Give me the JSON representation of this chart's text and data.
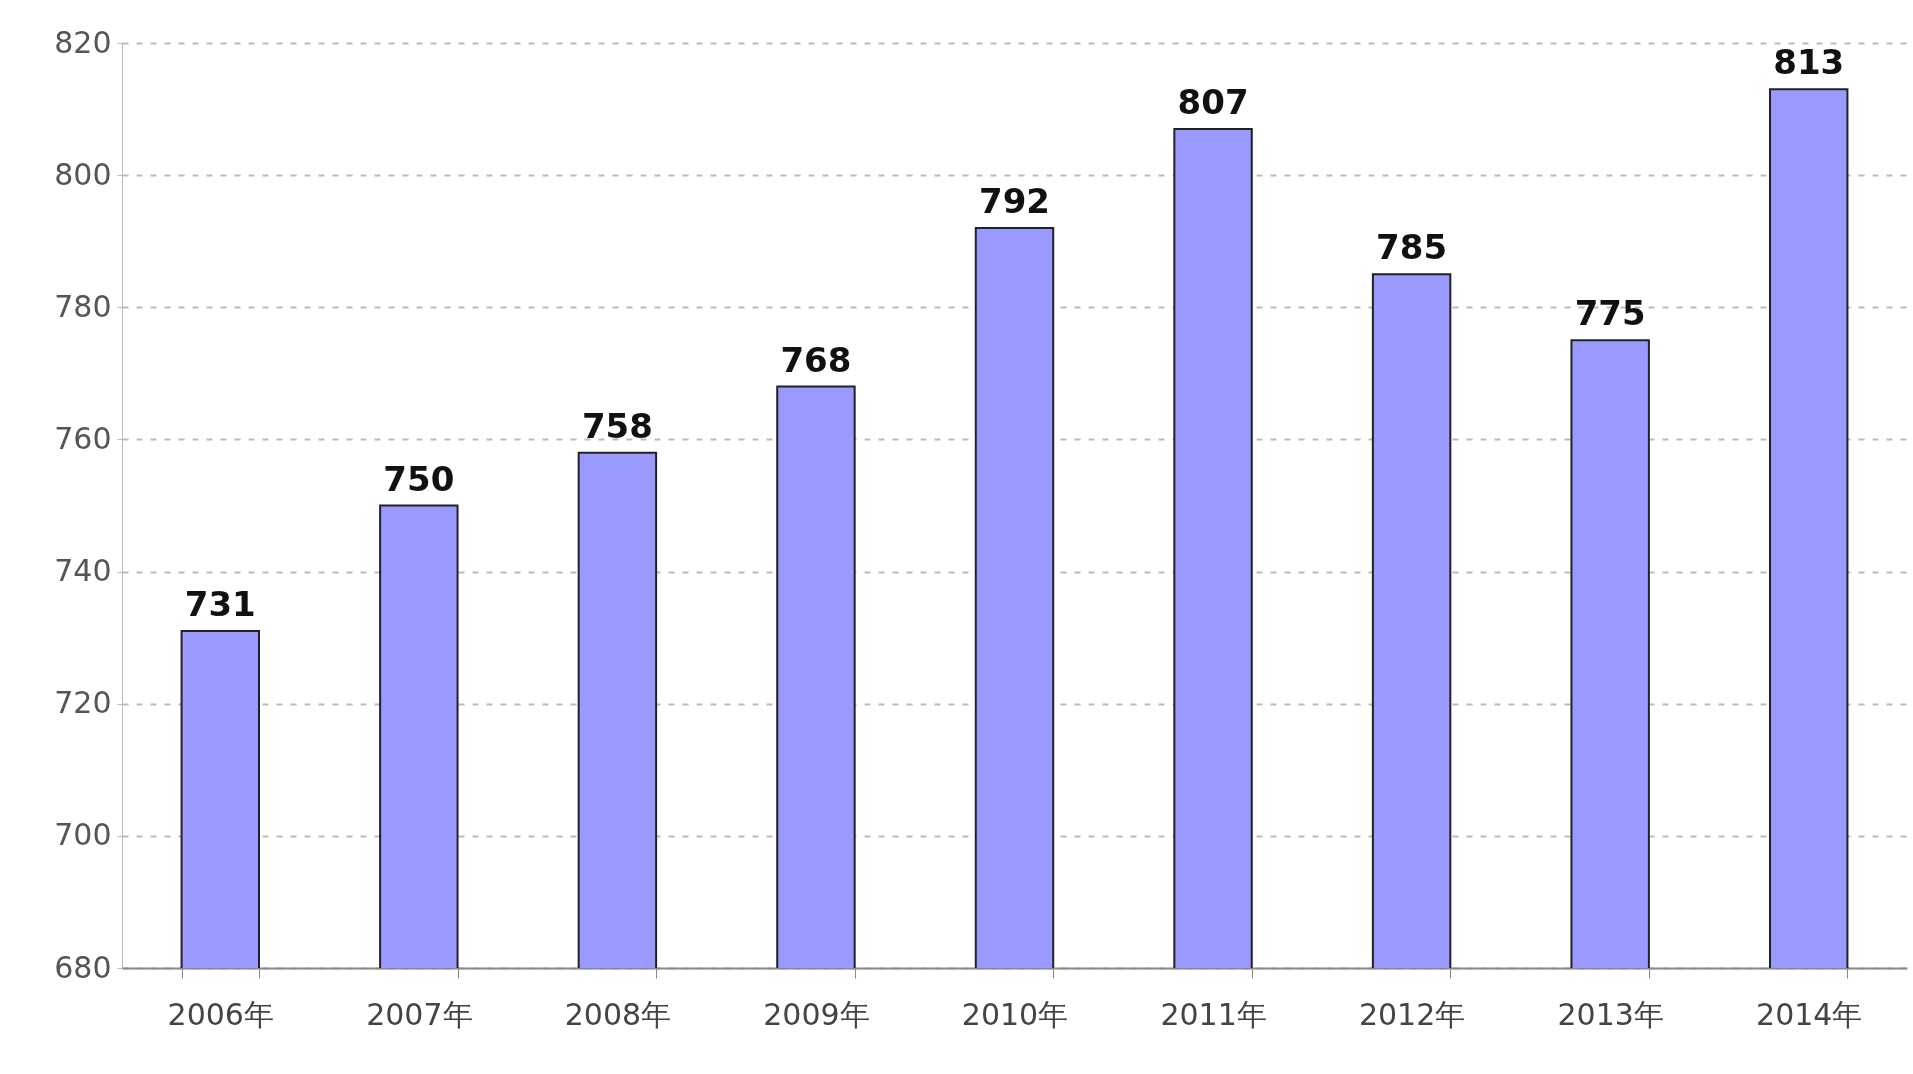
{
  "chart_data": {
    "type": "bar",
    "categories": [
      "2006年",
      "2007年",
      "2008年",
      "2009年",
      "2010年",
      "2011年",
      "2012年",
      "2013年",
      "2014年"
    ],
    "values": [
      731,
      750,
      758,
      768,
      792,
      807,
      785,
      775,
      813
    ],
    "color": "#9999ff",
    "ylim": [
      680,
      820
    ],
    "yticks": [
      680,
      700,
      720,
      740,
      760,
      780,
      800,
      820
    ],
    "grid": "y",
    "data_labels": true
  }
}
